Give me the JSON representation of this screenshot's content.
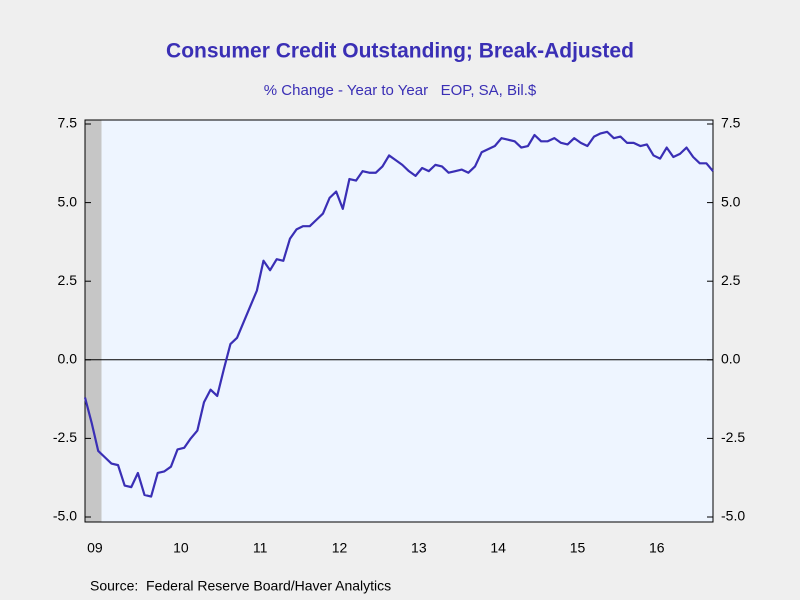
{
  "chart_data": {
    "type": "line",
    "title": "Consumer Credit Outstanding; Break-Adjusted",
    "subtitle": "% Change - Year to Year   EOP, SA, Bil.$",
    "source": "Source:  Federal Reserve Board/Haver Analytics",
    "categories": [
      null,
      null,
      "09",
      null,
      null,
      null,
      null,
      null,
      null,
      null,
      null,
      null,
      null,
      null,
      null,
      "10",
      null,
      null,
      null,
      null,
      null,
      null,
      null,
      null,
      null,
      null,
      null,
      "11",
      null,
      null,
      null,
      null,
      null,
      null,
      null,
      null,
      null,
      null,
      null,
      "12",
      null,
      null,
      null,
      null,
      null,
      null,
      null,
      null,
      null,
      null,
      null,
      "13",
      null,
      null,
      null,
      null,
      null,
      null,
      null,
      null,
      null,
      null,
      null,
      "14",
      null,
      null,
      null,
      null,
      null,
      null,
      null,
      null,
      null,
      null,
      null,
      "15",
      null,
      null,
      null,
      null,
      null,
      null,
      null,
      null,
      null,
      null,
      null,
      "16",
      null,
      null,
      null,
      null,
      null,
      null,
      null,
      null
    ],
    "series": [
      {
        "name": "Consumer Credit Outstanding",
        "color": "#3a2fb5",
        "values": [
          -1.2,
          -2.0,
          -2.9,
          -3.1,
          -3.3,
          -3.35,
          -4.0,
          -4.05,
          -3.6,
          -4.3,
          -4.35,
          -3.6,
          -3.55,
          -3.4,
          -2.85,
          -2.8,
          -2.5,
          -2.25,
          -1.35,
          -0.95,
          -1.15,
          -0.3,
          0.5,
          0.7,
          1.2,
          1.7,
          2.2,
          3.15,
          2.85,
          3.2,
          3.15,
          3.85,
          4.15,
          4.25,
          4.25,
          4.45,
          4.65,
          5.15,
          5.35,
          4.8,
          5.75,
          5.7,
          6.0,
          5.95,
          5.95,
          6.15,
          6.5,
          6.35,
          6.2,
          6.0,
          5.85,
          6.1,
          6.0,
          6.2,
          6.15,
          5.95,
          6.0,
          6.05,
          5.95,
          6.15,
          6.6,
          6.7,
          6.8,
          7.05,
          7.0,
          6.95,
          6.75,
          6.8,
          7.15,
          6.95,
          6.95,
          7.05,
          6.9,
          6.85,
          7.05,
          6.9,
          6.8,
          7.1,
          7.2,
          7.25,
          7.05,
          7.1,
          6.9,
          6.9,
          6.8,
          6.85,
          6.5,
          6.4,
          6.75,
          6.45,
          6.55,
          6.75,
          6.45,
          6.25,
          6.25,
          6.0
        ]
      }
    ],
    "ylim": [
      -5,
      7.5
    ],
    "yticks": [
      {
        "value": 7.5,
        "label": "7.5"
      },
      {
        "value": 5,
        "label": "5.0"
      },
      {
        "value": 2.5,
        "label": "2.5"
      },
      {
        "value": 0,
        "label": "0.0"
      },
      {
        "value": -2.5,
        "label": "-2.5"
      },
      {
        "value": -5,
        "label": "-5.0"
      }
    ],
    "y2lim": [
      -5,
      7.5
    ],
    "y2ticks": [
      {
        "value": 7.5,
        "label": "7.5"
      },
      {
        "value": 5,
        "label": "5.0"
      },
      {
        "value": 2.5,
        "label": "2.5"
      },
      {
        "value": 0,
        "label": "0.0"
      },
      {
        "value": -2.5,
        "label": "-2.5"
      },
      {
        "value": -5,
        "label": "-5.0"
      }
    ]
  }
}
